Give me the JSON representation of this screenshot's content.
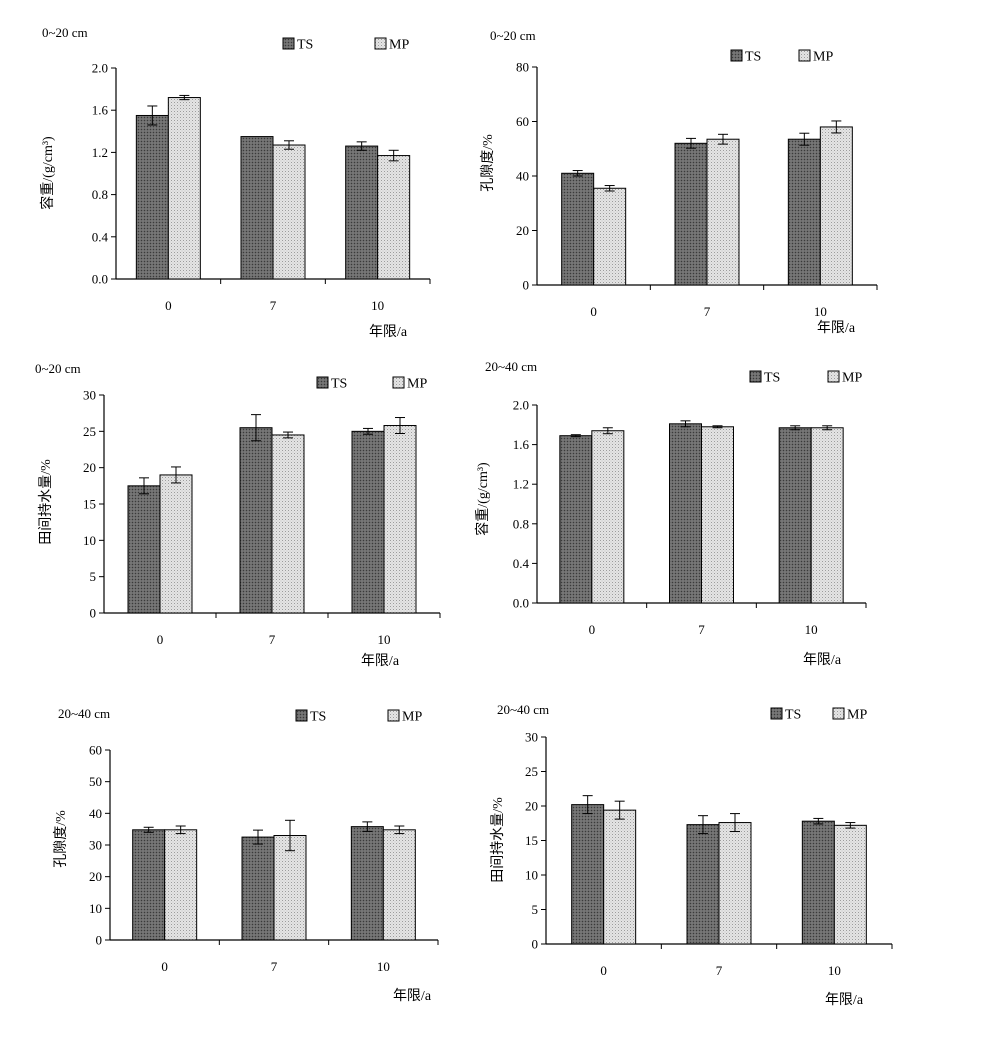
{
  "colors": {
    "TS": "#555555",
    "MP": "#d4d4d4",
    "axis": "#000000"
  },
  "chart_data": [
    {
      "type": "bar",
      "depth_label": "0~20 cm",
      "categories": [
        "0",
        "7",
        "10"
      ],
      "xlabel": "年限/a",
      "ylabel": "容重/(g/cm³)",
      "ylim": [
        0,
        2.0
      ],
      "ytick_labels": [
        "0.0",
        "0.4",
        "0.8",
        "1.2",
        "1.6",
        "2.0"
      ],
      "legend": "top-right",
      "series": [
        {
          "name": "TS",
          "values": [
            1.55,
            1.35,
            1.26
          ],
          "errors": [
            0.09,
            0.0,
            0.04
          ]
        },
        {
          "name": "MP",
          "values": [
            1.72,
            1.27,
            1.17
          ],
          "errors": [
            0.02,
            0.04,
            0.05
          ]
        }
      ]
    },
    {
      "type": "bar",
      "depth_label": "0~20 cm",
      "categories": [
        "0",
        "7",
        "10"
      ],
      "xlabel": "年限/a",
      "ylabel": "孔隙度/%",
      "ylim": [
        0,
        80
      ],
      "ytick_labels": [
        "0",
        "20",
        "40",
        "60",
        "80"
      ],
      "legend": "top-right",
      "series": [
        {
          "name": "TS",
          "values": [
            41,
            52,
            53.5
          ],
          "errors": [
            1.0,
            1.8,
            2.2
          ]
        },
        {
          "name": "MP",
          "values": [
            35.5,
            53.5,
            58
          ],
          "errors": [
            1.0,
            1.8,
            2.2
          ]
        }
      ]
    },
    {
      "type": "bar",
      "depth_label": "0~20 cm",
      "categories": [
        "0",
        "7",
        "10"
      ],
      "xlabel": "年限/a",
      "ylabel": "田间持水量/%",
      "ylim": [
        0,
        30
      ],
      "ytick_labels": [
        "0",
        "5",
        "10",
        "15",
        "20",
        "25",
        "30"
      ],
      "legend": "top-right",
      "series": [
        {
          "name": "TS",
          "values": [
            17.5,
            25.5,
            25.0
          ],
          "errors": [
            1.1,
            1.8,
            0.4
          ]
        },
        {
          "name": "MP",
          "values": [
            19.0,
            24.5,
            25.8
          ],
          "errors": [
            1.1,
            0.4,
            1.1
          ]
        }
      ]
    },
    {
      "type": "bar",
      "depth_label": "20~40 cm",
      "categories": [
        "0",
        "7",
        "10"
      ],
      "xlabel": "年限/a",
      "ylabel": "容重/(g/cm³)",
      "ylim": [
        0,
        2.0
      ],
      "ytick_labels": [
        "0.0",
        "0.4",
        "0.8",
        "1.2",
        "1.6",
        "2.0"
      ],
      "legend": "top-right",
      "series": [
        {
          "name": "TS",
          "values": [
            1.69,
            1.81,
            1.77
          ],
          "errors": [
            0.01,
            0.03,
            0.02
          ]
        },
        {
          "name": "MP",
          "values": [
            1.74,
            1.78,
            1.77
          ],
          "errors": [
            0.03,
            0.01,
            0.02
          ]
        }
      ]
    },
    {
      "type": "bar",
      "depth_label": "20~40 cm",
      "categories": [
        "0",
        "7",
        "10"
      ],
      "xlabel": "年限/a",
      "ylabel": "孔隙度/%",
      "ylim": [
        0,
        60
      ],
      "ytick_labels": [
        "0",
        "10",
        "20",
        "30",
        "40",
        "50",
        "60"
      ],
      "legend": "top-right",
      "series": [
        {
          "name": "TS",
          "values": [
            34.8,
            32.5,
            35.8
          ],
          "errors": [
            0.8,
            2.2,
            1.5
          ]
        },
        {
          "name": "MP",
          "values": [
            34.8,
            33.0,
            34.8
          ],
          "errors": [
            1.2,
            4.8,
            1.2
          ]
        }
      ]
    },
    {
      "type": "bar",
      "depth_label": "20~40 cm",
      "categories": [
        "0",
        "7",
        "10"
      ],
      "xlabel": "年限/a",
      "ylabel": "田间持水量/%",
      "ylim": [
        0,
        30
      ],
      "ytick_labels": [
        "0",
        "5",
        "10",
        "15",
        "20",
        "25",
        "30"
      ],
      "legend": "top-right",
      "series": [
        {
          "name": "TS",
          "values": [
            20.2,
            17.3,
            17.8
          ],
          "errors": [
            1.3,
            1.3,
            0.4
          ]
        },
        {
          "name": "MP",
          "values": [
            19.4,
            17.6,
            17.2
          ],
          "errors": [
            1.3,
            1.3,
            0.4
          ]
        }
      ]
    }
  ]
}
